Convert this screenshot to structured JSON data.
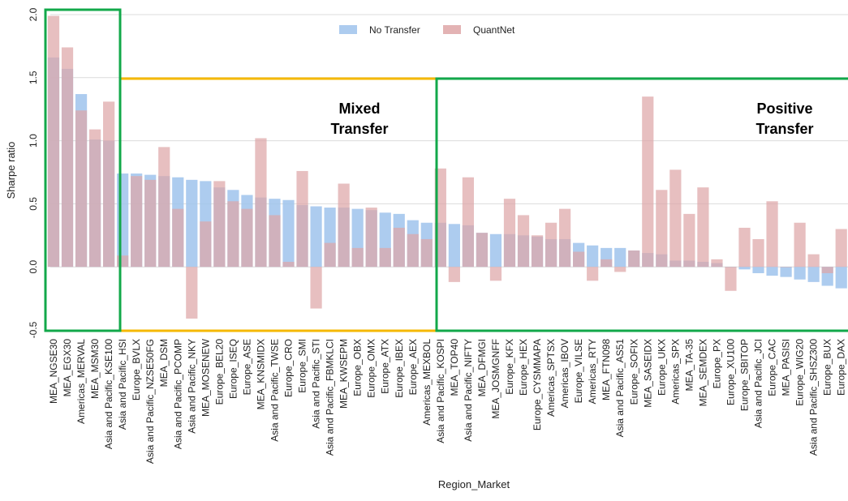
{
  "chart_data": {
    "type": "bar",
    "xlabel": "Region_Market",
    "ylabel": "Sharpe ratio",
    "ylim": [
      -0.5,
      2.0
    ],
    "yticks": [
      "-0.5",
      "0.0",
      "0.5",
      "1.0",
      "1.5",
      "2.0"
    ],
    "grid": "horizontal",
    "legend_position": "top-center",
    "categories": [
      "MEA_NGSE30",
      "MEA_EGX30",
      "Americas_MERVAL",
      "MEA_MSM30",
      "Asia and Pacific_KSE100",
      "Asia and Pacific_HSI",
      "Europe_BVLX",
      "Asia and Pacific_NZSE50FG",
      "MEA_DSM",
      "Asia and Pacific_PCOMP",
      "Asia and Pacific_NKY",
      "MEA_MOSENEW",
      "Europe_BEL20",
      "Europe_ISEQ",
      "Europe_ASE",
      "MEA_KNSMIDX",
      "Asia and Pacific_TWSE",
      "Europe_CRO",
      "Europe_SMI",
      "Asia and Pacific_STI",
      "Asia and Pacific_FBMKLCI",
      "MEA_KWSEPM",
      "Europe_OBX",
      "Europe_OMX",
      "Europe_ATX",
      "Europe_IBEX",
      "Europe_AEX",
      "Americas_MEXBOL",
      "Asia and Pacific_KOSPI",
      "MEA_TOP40",
      "Asia and Pacific_NIFTY",
      "MEA_DFMGI",
      "MEA_JOSMGNFF",
      "Europe_KFX",
      "Europe_HEX",
      "Europe_CYSMMAPA",
      "Americas_SPTSX",
      "Americas_IBOV",
      "Europe_VILSE",
      "Americas_RTY",
      "MEA_FTN098",
      "Asia and Pacific_AS51",
      "Europe_SOFIX",
      "MEA_SASEIDX",
      "Europe_UKX",
      "Americas_SPX",
      "MEA_TA-35",
      "MEA_SEMDEX",
      "Europe_PX",
      "Europe_XU100",
      "Europe_SBITOP",
      "Asia and Pacific_JCI",
      "Europe_CAC",
      "MEA_PASISI",
      "Europe_WIG20",
      "Asia and Pacific_SHSZ300",
      "Europe_BUX",
      "Europe_DAX"
    ],
    "series": [
      {
        "name": "No Transfer",
        "color": "#9fc3ec",
        "values": [
          1.66,
          1.57,
          1.37,
          1.01,
          1.0,
          0.74,
          0.74,
          0.73,
          0.72,
          0.71,
          0.69,
          0.68,
          0.63,
          0.61,
          0.57,
          0.55,
          0.54,
          0.53,
          0.49,
          0.48,
          0.47,
          0.47,
          0.46,
          0.45,
          0.43,
          0.42,
          0.37,
          0.35,
          0.35,
          0.34,
          0.33,
          0.27,
          0.26,
          0.26,
          0.25,
          0.24,
          0.22,
          0.22,
          0.19,
          0.17,
          0.15,
          0.15,
          0.13,
          0.11,
          0.1,
          0.05,
          0.05,
          0.04,
          0.03,
          0.0,
          -0.02,
          -0.05,
          -0.07,
          -0.08,
          -0.1,
          -0.12,
          -0.15,
          -0.17
        ]
      },
      {
        "name": "QuantNet",
        "color": "#dea6a7",
        "values": [
          1.99,
          1.74,
          1.24,
          1.09,
          1.31,
          0.09,
          0.72,
          0.69,
          0.95,
          0.46,
          -0.41,
          0.36,
          0.68,
          0.52,
          0.46,
          1.02,
          0.41,
          0.04,
          0.76,
          -0.33,
          0.19,
          0.66,
          0.15,
          0.47,
          0.15,
          0.31,
          0.26,
          0.22,
          0.78,
          -0.12,
          0.71,
          0.27,
          -0.11,
          0.54,
          0.41,
          0.25,
          0.35,
          0.46,
          0.12,
          -0.11,
          0.06,
          -0.04,
          0.13,
          1.35,
          0.61,
          0.77,
          0.42,
          0.63,
          0.06,
          -0.19,
          0.31,
          0.22,
          0.52,
          0.0,
          0.35,
          0.1,
          -0.05,
          0.3
        ]
      }
    ],
    "annotations": [
      {
        "label": "Mixed Transfer",
        "lines": [
          "Mixed",
          "Transfer"
        ],
        "color": "#f5b800",
        "from_index": 5,
        "to_index": 27
      },
      {
        "label": "Positive Transfer",
        "lines": [
          "Positive",
          "Transfer"
        ],
        "color": "#12a84a",
        "from_index": 28,
        "to_index": 57
      },
      {
        "label": "",
        "lines": [],
        "color": "#12a84a",
        "from_index": 0,
        "to_index": 4
      }
    ]
  }
}
